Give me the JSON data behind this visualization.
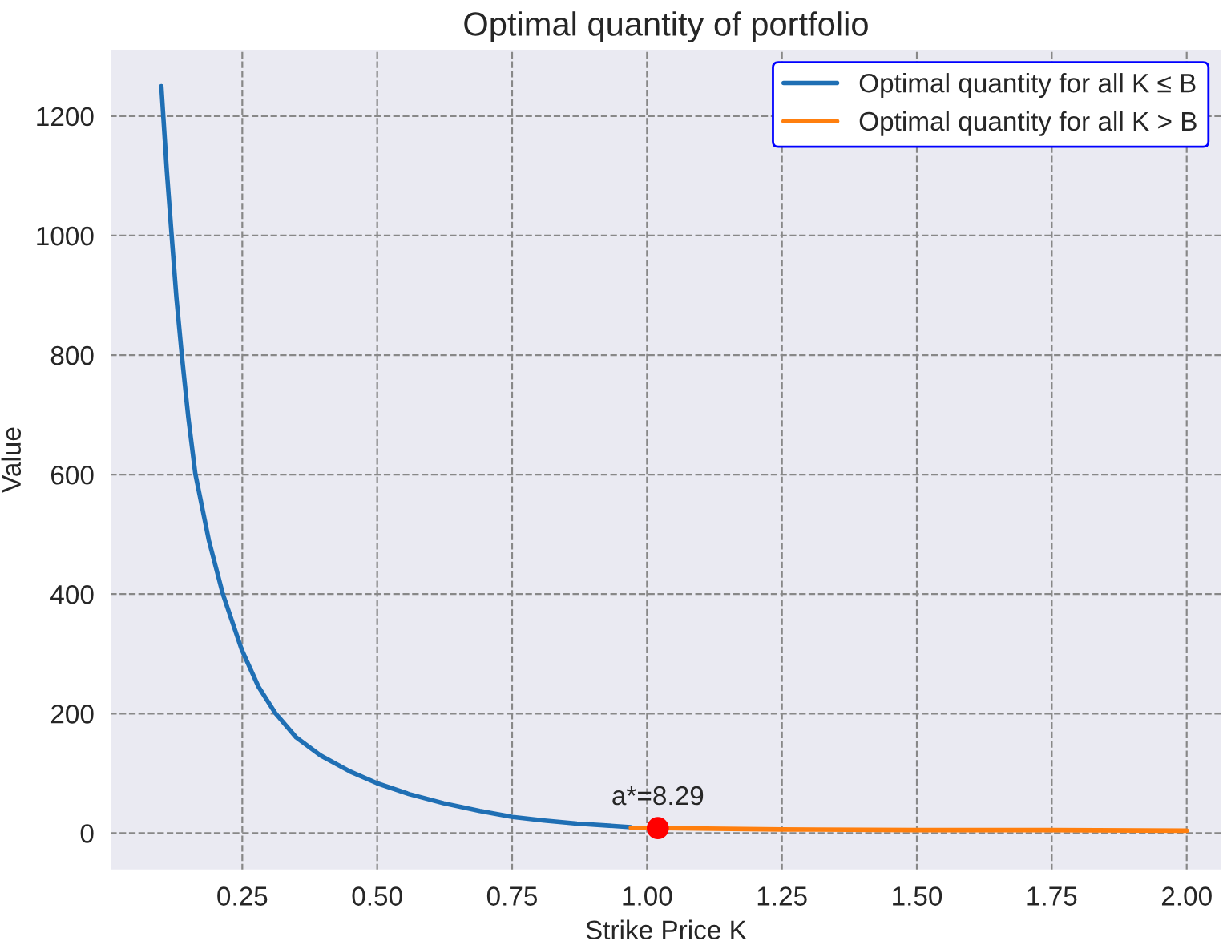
{
  "chart_data": {
    "type": "line",
    "title": "Optimal quantity of portfolio",
    "xlabel": "Strike Price K",
    "ylabel": "Value",
    "series": [
      {
        "name": "Optimal quantity for all K ≤ B",
        "color": "#1f6fb4",
        "x": [
          0.1,
          0.11,
          0.119,
          0.128,
          0.138,
          0.15,
          0.163,
          0.188,
          0.214,
          0.249,
          0.28,
          0.311,
          0.35,
          0.395,
          0.45,
          0.501,
          0.56,
          0.623,
          0.69,
          0.751,
          0.81,
          0.87,
          0.97
        ],
        "values": [
          1250,
          1110,
          1001,
          895,
          799,
          695,
          601,
          490,
          400,
          307,
          245,
          201,
          160,
          130,
          103,
          83,
          65,
          50,
          37,
          27,
          21,
          16,
          10
        ]
      },
      {
        "name": "Optimal quantity for all K > B",
        "color": "#ff7f0e",
        "x": [
          0.97,
          1.25,
          1.5,
          1.75,
          2.0
        ],
        "values": [
          9,
          6,
          5,
          5,
          4
        ]
      },
      {
        "color": "#ff0000",
        "type": "scatter",
        "marker": "circle",
        "x": [
          1.02
        ],
        "values": [
          8.29
        ]
      }
    ],
    "annotations": [
      {
        "text": "a*=8.29",
        "x": 1.02,
        "y": 8.29
      }
    ],
    "xlim": [
      0.005,
      2.065
    ],
    "ylim": [
      -62.5,
      1312.5
    ],
    "xticks": [
      {
        "value": 0.25,
        "label": "0.25"
      },
      {
        "value": 0.5,
        "label": "0.50"
      },
      {
        "value": 0.75,
        "label": "0.75"
      },
      {
        "value": 1.0,
        "label": "1.00"
      },
      {
        "value": 1.25,
        "label": "1.25"
      },
      {
        "value": 1.5,
        "label": "1.50"
      },
      {
        "value": 1.75,
        "label": "1.75"
      },
      {
        "value": 2.0,
        "label": "2.00"
      }
    ],
    "yticks": [
      0,
      200,
      400,
      600,
      800,
      1000,
      1200
    ],
    "grid": true,
    "legend": "top right",
    "line_style": "solid"
  }
}
